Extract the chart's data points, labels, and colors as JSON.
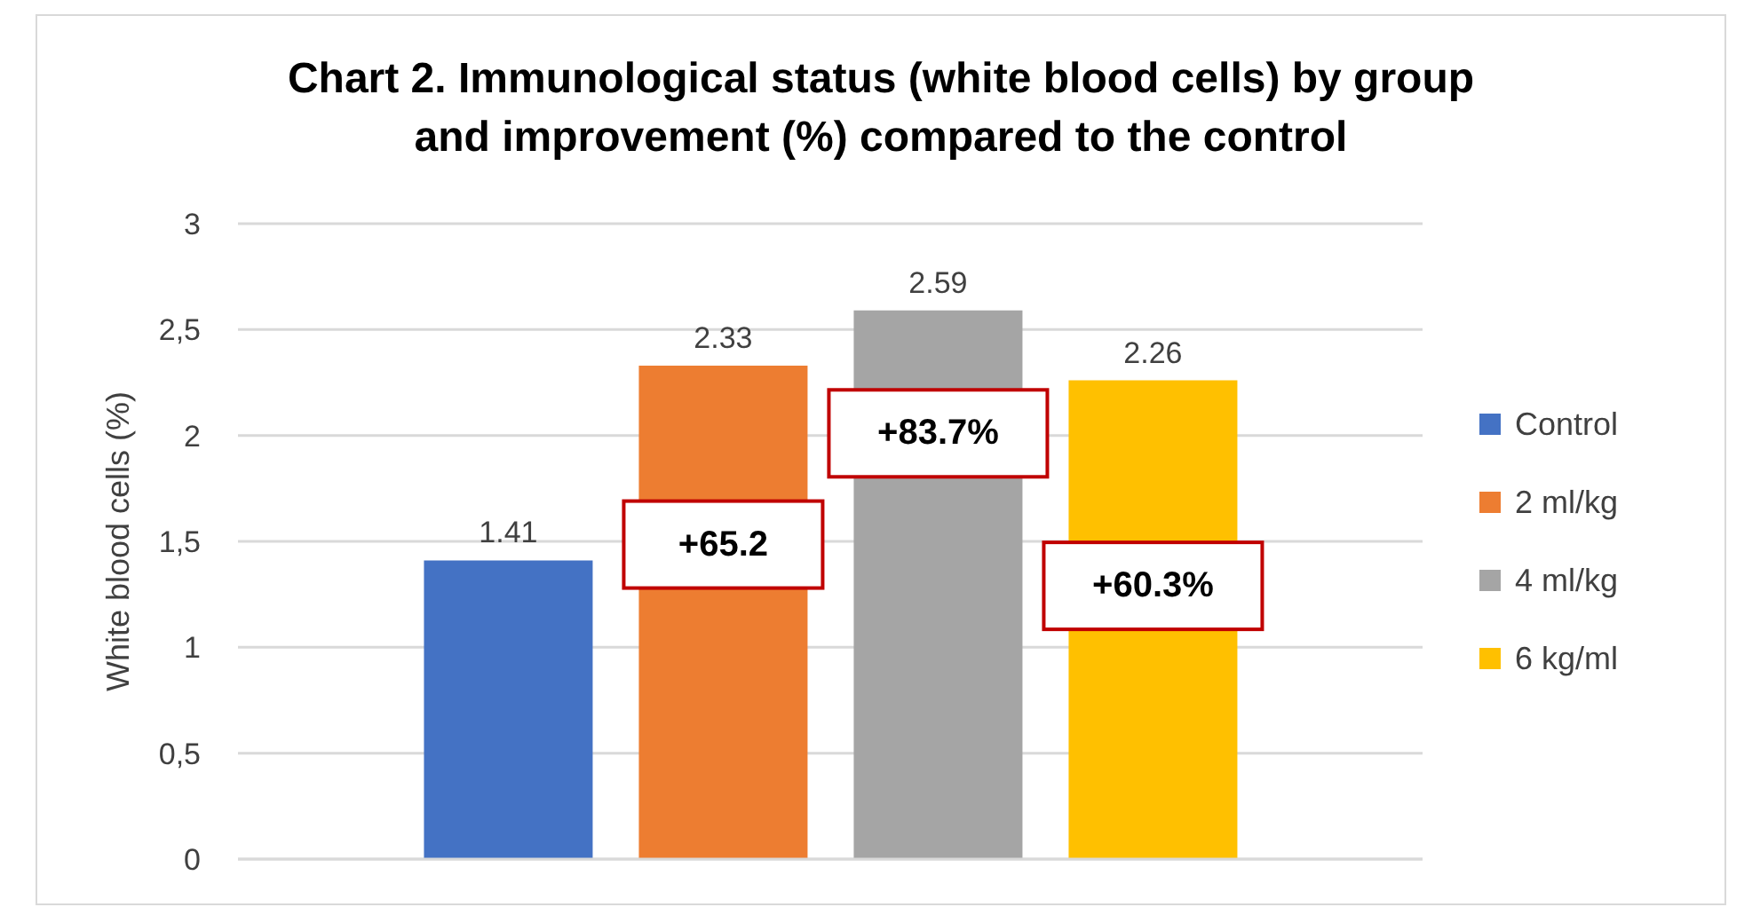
{
  "chart_data": {
    "type": "bar",
    "title": "Chart 2. Immunological status (white blood cells) by group and improvement (%) compared to the control",
    "ylabel": "White blood cells (%)",
    "categories": [
      null
    ],
    "series": [
      {
        "name": "Control",
        "color": "#4472c4",
        "values": [
          1.41
        ]
      },
      {
        "name": "2 ml/kg",
        "color": "#ed7d31",
        "values": [
          2.33
        ]
      },
      {
        "name": "4 ml/kg",
        "color": "#a5a5a5",
        "values": [
          2.59
        ]
      },
      {
        "name": "6 kg/ml",
        "color": "#ffc000",
        "values": [
          2.26
        ]
      }
    ],
    "ylim": [
      0,
      3
    ],
    "yticks": [
      0,
      {
        "value": 0.5,
        "label": "0,5"
      },
      1,
      {
        "value": 1.5,
        "label": "1,5"
      },
      2,
      {
        "value": 2.5,
        "label": "2,5"
      },
      3
    ],
    "grid": "y",
    "legend": "right",
    "data_labels": true,
    "annotations": [
      "+65.2",
      "+83.7%",
      "+60.3%"
    ]
  }
}
